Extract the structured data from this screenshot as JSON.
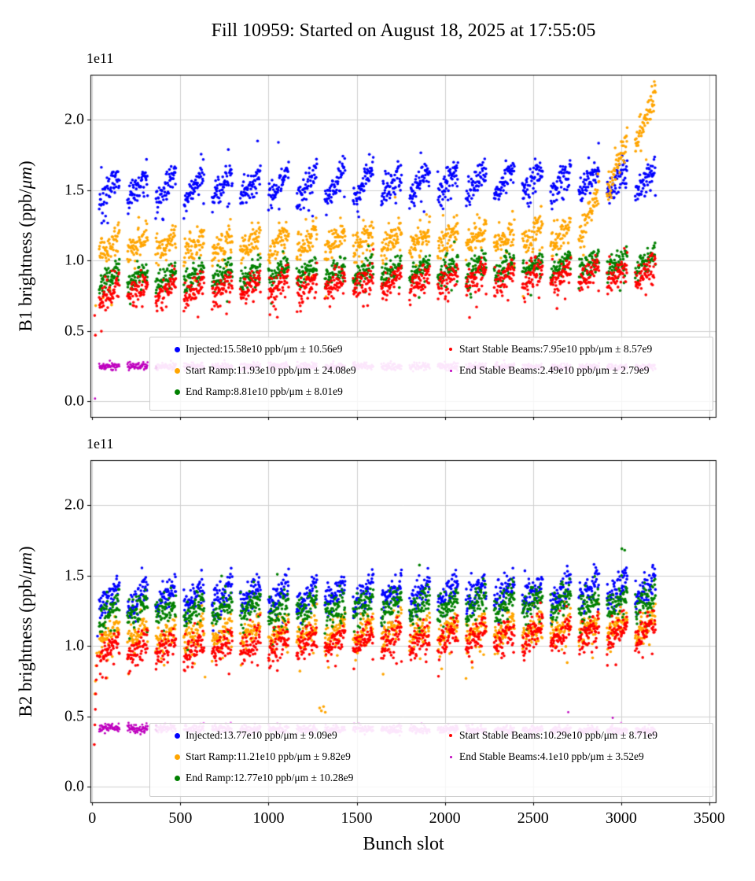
{
  "chart_data": {
    "type": "scatter",
    "title": "Fill 10959: Started on August 18, 2025 at 17:55:05",
    "xlabel": "Bunch slot",
    "y_offset_label": "1e11",
    "y_unit": "1e11 ppb/μm",
    "grid": true,
    "legend_position": "lower center, two columns, inside axes",
    "xlim": [
      -10,
      3536
    ],
    "ylim": [
      -0.11,
      2.32
    ],
    "xticks": [
      0,
      500,
      1000,
      1500,
      2000,
      2500,
      3000,
      3500
    ],
    "xtick_labels": [
      "0",
      "500",
      "1000",
      "1500",
      "2000",
      "2500",
      "3000",
      "3500"
    ],
    "yticks": [
      0.0,
      0.5,
      1.0,
      1.5,
      2.0
    ],
    "ytick_labels": [
      "0.0",
      "0.5",
      "1.0",
      "1.5",
      "2.0"
    ],
    "bunch_pattern": {
      "first_slot": 40,
      "trains": 20,
      "period": 160,
      "points_per_train": 58,
      "slot_step": 2
    },
    "plots": [
      {
        "name": "B1",
        "ylabel": "B1 brightness (ppb/μm)",
        "ylabel_parts": {
          "pre": "B1 brightness (ppb/",
          "mu": "μm",
          "post": ")"
        },
        "series": [
          {
            "name": "Injected",
            "mean": "15.58e10 ppb/μm",
            "std": "10.56e9",
            "legend": "Injected:15.58e10 ppb/μm ± 10.56e9",
            "color": "#0000ff",
            "marker_r": 1.8,
            "legend_marker_px": 7,
            "gen": {
              "base_start": 1.51,
              "base_end": 1.58,
              "train_amp": 0.1,
              "noise": 0.05,
              "drop_p": 0.05,
              "drop_max": 0.22,
              "up_p": 0.03,
              "up_max": 0.22
            }
          },
          {
            "name": "Start Ramp",
            "mean": "11.93e10 ppb/μm",
            "std": "24.08e9",
            "legend": "Start Ramp:11.93e10 ppb/μm ± 24.08e9",
            "color": "#ffa500",
            "marker_r": 1.8,
            "legend_marker_px": 7,
            "gen": {
              "base_start": 1.1,
              "base_end": 1.2,
              "train_amp": 0.07,
              "noise": 0.055,
              "drop_p": 0.04,
              "drop_max": 0.35,
              "up_p": 0.02,
              "up_max": 0.15,
              "surge": [
                2750,
                500,
                1.05
              ]
            },
            "outliers": [
              [
                20,
                0.68
              ]
            ]
          },
          {
            "name": "End Ramp",
            "mean": "8.81e10 ppb/μm",
            "std": "8.01e9",
            "legend": "End Ramp:8.81e10 ppb/μm ± 8.01e9",
            "color": "#008000",
            "marker_r": 1.8,
            "legend_marker_px": 7,
            "gen": {
              "base_start": 0.87,
              "base_end": 0.99,
              "train_amp": 0.055,
              "noise": 0.045,
              "drop_p": 0.05,
              "drop_max": 0.18
            }
          },
          {
            "name": "Start Stable Beams",
            "mean": "7.95e10 ppb/μm",
            "std": "8.57e9",
            "legend": "Start Stable Beams:7.95e10 ppb/μm ± 8.57e9",
            "color": "#ff0000",
            "marker_r": 1.8,
            "legend_marker_px": 4,
            "gen": {
              "base_start": 0.78,
              "base_end": 0.92,
              "train_amp": 0.06,
              "noise": 0.05,
              "drop_p": 0.06,
              "drop_max": 0.18
            },
            "outliers": [
              [
                14,
                0.61
              ],
              [
                18,
                0.47
              ]
            ]
          },
          {
            "name": "End Stable Beams",
            "mean": "2.49e10 ppb/μm",
            "std": "2.79e9",
            "legend": "End Stable Beams:2.49e10 ppb/μm ± 2.79e9",
            "color": "#ee82ee",
            "marker_r": 1.4,
            "legend_marker_px": 3,
            "gen": {
              "base_start": 0.25,
              "base_end": 0.245,
              "train_amp": 0.0,
              "noise": 0.013,
              "head_x": 370,
              "head_color": "#bf00bf"
            },
            "outliers": [
              [
                16,
                0.02
              ]
            ]
          }
        ]
      },
      {
        "name": "B2",
        "ylabel": "B2 brightness (ppb/μm)",
        "ylabel_parts": {
          "pre": "B2 brightness (ppb/",
          "mu": "μm",
          "post": ")"
        },
        "series": [
          {
            "name": "Injected",
            "mean": "13.77e10 ppb/μm",
            "std": "9.09e9",
            "legend": "Injected:13.77e10 ppb/μm ± 9.09e9",
            "color": "#0000ff",
            "marker_r": 1.8,
            "legend_marker_px": 7,
            "gen": {
              "base_start": 1.34,
              "base_end": 1.41,
              "train_amp": 0.08,
              "noise": 0.055,
              "drop_p": 0.04,
              "drop_max": 0.2,
              "up_p": 0.02,
              "up_max": 0.2
            },
            "outliers": [
              [
                30,
                1.07
              ]
            ]
          },
          {
            "name": "Start Ramp",
            "mean": "11.21e10 ppb/μm",
            "std": "9.82e9",
            "legend": "Start Ramp:11.21e10 ppb/μm ± 9.82e9",
            "color": "#ffa500",
            "marker_r": 1.8,
            "legend_marker_px": 7,
            "gen": {
              "base_start": 1.08,
              "base_end": 1.14,
              "train_amp": 0.06,
              "noise": 0.05,
              "drop_p": 0.07,
              "drop_max": 0.25
            },
            "outliers": [
              [
                15,
                0.66
              ],
              [
                18,
                0.75
              ],
              [
                22,
                0.86
              ],
              [
                26,
                0.95
              ],
              [
                640,
                0.78
              ],
              [
                1290,
                0.56
              ],
              [
                1300,
                0.54
              ],
              [
                1312,
                0.57
              ],
              [
                1322,
                0.53
              ],
              [
                1650,
                0.8
              ],
              [
                2120,
                0.77
              ]
            ]
          },
          {
            "name": "End Ramp",
            "mean": "12.77e10 ppb/μm",
            "std": "10.28e9",
            "legend": "End Ramp:12.77e10 ppb/μm ± 10.28e9",
            "color": "#008000",
            "marker_r": 1.8,
            "legend_marker_px": 7,
            "gen": {
              "base_start": 1.25,
              "base_end": 1.32,
              "train_amp": 0.06,
              "noise": 0.055,
              "drop_p": 0.04,
              "drop_max": 0.18,
              "up_p": 0.015,
              "up_max": 0.22
            },
            "outliers": [
              [
                3020,
                1.68
              ]
            ]
          },
          {
            "name": "Start Stable Beams",
            "mean": "10.29e10 ppb/μm",
            "std": "8.71e9",
            "legend": "Start Stable Beams:10.29e10 ppb/μm ± 8.71e9",
            "color": "#ff0000",
            "marker_r": 1.8,
            "legend_marker_px": 4,
            "gen": {
              "base_start": 0.97,
              "base_end": 1.12,
              "train_amp": 0.06,
              "noise": 0.055,
              "drop_p": 0.06,
              "drop_max": 0.2
            },
            "outliers": [
              [
                12,
                0.3
              ],
              [
                15,
                0.44
              ],
              [
                18,
                0.55
              ],
              [
                20,
                0.66
              ],
              [
                23,
                0.76
              ],
              [
                26,
                0.86
              ],
              [
                29,
                0.93
              ]
            ]
          },
          {
            "name": "End Stable Beams",
            "mean": "4.1e10 ppb/μm",
            "std": "3.52e9",
            "legend": "End Stable Beams:4.1e10 ppb/μm ± 3.52e9",
            "color": "#ee82ee",
            "marker_r": 1.4,
            "legend_marker_px": 3,
            "gen": {
              "base_start": 0.415,
              "base_end": 0.4,
              "train_amp": 0.0,
              "noise": 0.015,
              "head_x": 370,
              "head_color": "#bf00bf"
            },
            "dark_outliers": [
              [
                2700,
                0.53
              ],
              [
                2952,
                0.49
              ]
            ]
          }
        ]
      }
    ]
  }
}
